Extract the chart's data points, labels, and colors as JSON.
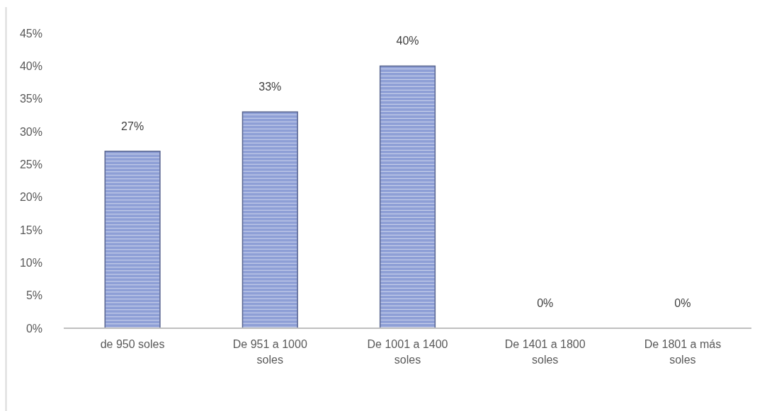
{
  "chart_data": {
    "type": "bar",
    "categories": [
      "de 950 soles",
      "De 951 a 1000 soles",
      "De 1001 a 1400 soles",
      "De 1401 a 1800 soles",
      "De 1801 a más soles"
    ],
    "values": [
      27,
      33,
      40,
      0,
      0
    ],
    "value_labels": [
      "27%",
      "33%",
      "40%",
      "0%",
      "0%"
    ],
    "color": "#8e9fd6",
    "ylim": [
      0,
      45
    ],
    "yticks": [
      {
        "value": 0,
        "label": "0%"
      },
      {
        "value": 5,
        "label": "5%"
      },
      {
        "value": 10,
        "label": "10%"
      },
      {
        "value": 15,
        "label": "15%"
      },
      {
        "value": 20,
        "label": "20%"
      },
      {
        "value": 25,
        "label": "25%"
      },
      {
        "value": 30,
        "label": "30%"
      },
      {
        "value": 35,
        "label": "35%"
      },
      {
        "value": 40,
        "label": "40%"
      },
      {
        "value": 45,
        "label": "45%"
      }
    ],
    "grid": false
  }
}
